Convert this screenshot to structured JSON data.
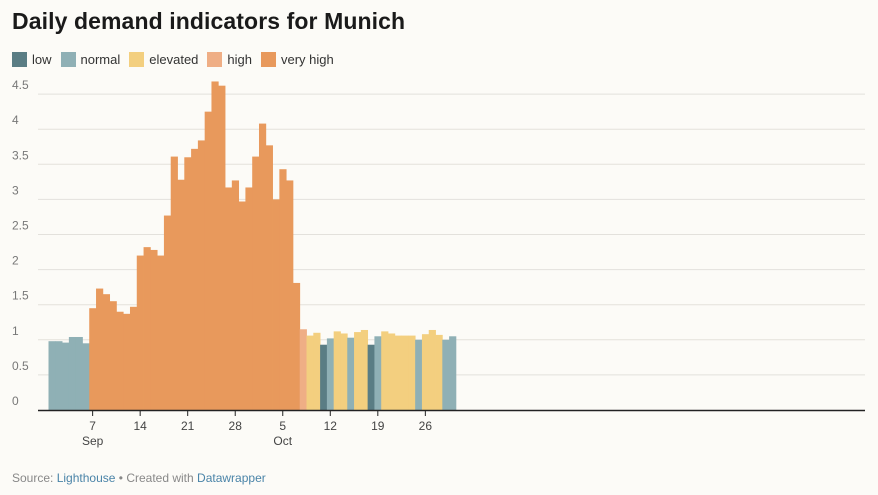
{
  "title": "Daily demand indicators for Munich",
  "legend": [
    {
      "label": "low",
      "color": "#5a7d84"
    },
    {
      "label": "normal",
      "color": "#8fb0b5"
    },
    {
      "label": "elevated",
      "color": "#f3cf7f"
    },
    {
      "label": "high",
      "color": "#efae85"
    },
    {
      "label": "very high",
      "color": "#e8995c"
    }
  ],
  "footer": {
    "source_label": "Source:",
    "source_name": "Lighthouse",
    "separator": "•",
    "created_label": "Created with",
    "tool_name": "Datawrapper"
  },
  "chart_data": {
    "type": "bar",
    "ylim": [
      0,
      4.7
    ],
    "yticks": [
      0,
      0.5,
      1,
      1.5,
      2,
      2.5,
      3,
      3.5,
      4,
      4.5
    ],
    "ytick_labels": [
      "0",
      "0.5",
      "1",
      "1.5",
      "2",
      "2.5",
      "3",
      "3.5",
      "4",
      "4.5"
    ],
    "grid": true,
    "legend_placement": "top-left",
    "xticks": [
      {
        "day": 6,
        "label": "7",
        "sublabel": "Sep"
      },
      {
        "day": 13,
        "label": "14",
        "sublabel": ""
      },
      {
        "day": 20,
        "label": "21",
        "sublabel": ""
      },
      {
        "day": 27,
        "label": "28",
        "sublabel": ""
      },
      {
        "day": 34,
        "label": "5",
        "sublabel": "Oct"
      },
      {
        "day": 41,
        "label": "12",
        "sublabel": ""
      },
      {
        "day": 48,
        "label": "19",
        "sublabel": ""
      },
      {
        "day": 55,
        "label": "26",
        "sublabel": ""
      }
    ],
    "days": [
      {
        "date": "Sep 1",
        "value": 0.98,
        "level": "normal"
      },
      {
        "date": "Sep 2",
        "value": 0.98,
        "level": "normal"
      },
      {
        "date": "Sep 3",
        "value": 0.96,
        "level": "normal"
      },
      {
        "date": "Sep 4",
        "value": 1.04,
        "level": "normal"
      },
      {
        "date": "Sep 5",
        "value": 1.04,
        "level": "normal"
      },
      {
        "date": "Sep 6",
        "value": 0.95,
        "level": "normal"
      },
      {
        "date": "Sep 7",
        "value": 1.45,
        "level": "very high"
      },
      {
        "date": "Sep 8",
        "value": 1.73,
        "level": "very high"
      },
      {
        "date": "Sep 9",
        "value": 1.65,
        "level": "very high"
      },
      {
        "date": "Sep 10",
        "value": 1.55,
        "level": "very high"
      },
      {
        "date": "Sep 11",
        "value": 1.4,
        "level": "very high"
      },
      {
        "date": "Sep 12",
        "value": 1.37,
        "level": "very high"
      },
      {
        "date": "Sep 13",
        "value": 1.47,
        "level": "very high"
      },
      {
        "date": "Sep 14",
        "value": 2.2,
        "level": "very high"
      },
      {
        "date": "Sep 15",
        "value": 2.32,
        "level": "very high"
      },
      {
        "date": "Sep 16",
        "value": 2.28,
        "level": "very high"
      },
      {
        "date": "Sep 17",
        "value": 2.2,
        "level": "very high"
      },
      {
        "date": "Sep 18",
        "value": 2.77,
        "level": "very high"
      },
      {
        "date": "Sep 19",
        "value": 3.61,
        "level": "very high"
      },
      {
        "date": "Sep 20",
        "value": 3.28,
        "level": "very high"
      },
      {
        "date": "Sep 21",
        "value": 3.6,
        "level": "very high"
      },
      {
        "date": "Sep 22",
        "value": 3.72,
        "level": "very high"
      },
      {
        "date": "Sep 23",
        "value": 3.84,
        "level": "very high"
      },
      {
        "date": "Sep 24",
        "value": 4.25,
        "level": "very high"
      },
      {
        "date": "Sep 25",
        "value": 4.68,
        "level": "very high"
      },
      {
        "date": "Sep 26",
        "value": 4.62,
        "level": "very high"
      },
      {
        "date": "Sep 27",
        "value": 3.17,
        "level": "very high"
      },
      {
        "date": "Sep 28",
        "value": 3.27,
        "level": "very high"
      },
      {
        "date": "Sep 29",
        "value": 2.97,
        "level": "very high"
      },
      {
        "date": "Sep 30",
        "value": 3.17,
        "level": "very high"
      },
      {
        "date": "Oct 1",
        "value": 3.61,
        "level": "very high"
      },
      {
        "date": "Oct 2",
        "value": 4.08,
        "level": "very high"
      },
      {
        "date": "Oct 3",
        "value": 3.77,
        "level": "very high"
      },
      {
        "date": "Oct 4",
        "value": 3.0,
        "level": "very high"
      },
      {
        "date": "Oct 5",
        "value": 3.43,
        "level": "very high"
      },
      {
        "date": "Oct 6",
        "value": 3.27,
        "level": "very high"
      },
      {
        "date": "Oct 7",
        "value": 1.81,
        "level": "very high"
      },
      {
        "date": "Oct 8",
        "value": 1.15,
        "level": "high"
      },
      {
        "date": "Oct 9",
        "value": 1.06,
        "level": "elevated"
      },
      {
        "date": "Oct 10",
        "value": 1.1,
        "level": "elevated"
      },
      {
        "date": "Oct 11",
        "value": 0.93,
        "level": "low"
      },
      {
        "date": "Oct 12",
        "value": 1.02,
        "level": "normal"
      },
      {
        "date": "Oct 13",
        "value": 1.12,
        "level": "elevated"
      },
      {
        "date": "Oct 14",
        "value": 1.09,
        "level": "elevated"
      },
      {
        "date": "Oct 15",
        "value": 1.03,
        "level": "normal"
      },
      {
        "date": "Oct 16",
        "value": 1.11,
        "level": "elevated"
      },
      {
        "date": "Oct 17",
        "value": 1.14,
        "level": "elevated"
      },
      {
        "date": "Oct 18",
        "value": 0.93,
        "level": "low"
      },
      {
        "date": "Oct 19",
        "value": 1.05,
        "level": "normal"
      },
      {
        "date": "Oct 20",
        "value": 1.12,
        "level": "elevated"
      },
      {
        "date": "Oct 21",
        "value": 1.09,
        "level": "elevated"
      },
      {
        "date": "Oct 22",
        "value": 1.06,
        "level": "elevated"
      },
      {
        "date": "Oct 23",
        "value": 1.06,
        "level": "elevated"
      },
      {
        "date": "Oct 24",
        "value": 1.06,
        "level": "elevated"
      },
      {
        "date": "Oct 25",
        "value": 1.0,
        "level": "normal"
      },
      {
        "date": "Oct 26",
        "value": 1.08,
        "level": "elevated"
      },
      {
        "date": "Oct 27",
        "value": 1.14,
        "level": "elevated"
      },
      {
        "date": "Oct 28",
        "value": 1.07,
        "level": "elevated"
      },
      {
        "date": "Oct 29",
        "value": 1.0,
        "level": "normal"
      },
      {
        "date": "Oct 30",
        "value": 1.05,
        "level": "normal"
      }
    ]
  }
}
